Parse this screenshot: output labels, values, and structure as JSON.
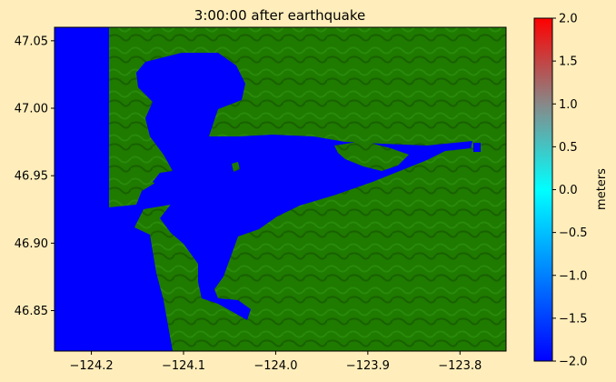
{
  "figure": {
    "title": "3:00:00 after earthquake",
    "colorbar_label": "meters"
  },
  "chart_data": {
    "type": "heatmap",
    "title": "3:00:00 after earthquake",
    "xlabel": "",
    "ylabel": "",
    "xlim": [
      -124.24,
      -123.75
    ],
    "ylim": [
      46.82,
      47.06
    ],
    "xticks": [
      -124.2,
      -124.1,
      -124.0,
      -123.9,
      -123.8
    ],
    "xtick_labels": [
      "−124.2",
      "−124.1",
      "−124.0",
      "−123.9",
      "−123.8"
    ],
    "yticks": [
      46.85,
      46.9,
      46.95,
      47.0,
      47.05
    ],
    "ytick_labels": [
      "46.85",
      "46.90",
      "46.95",
      "47.00",
      "47.05"
    ],
    "colorbar": {
      "label": "meters",
      "range": [
        -2.0,
        2.0
      ],
      "ticks": [
        2.0,
        1.5,
        1.0,
        0.5,
        0.0,
        -0.5,
        -1.0,
        -1.5,
        -2.0
      ],
      "tick_labels": [
        "2.0",
        "1.5",
        "1.0",
        "0.5",
        "0.0",
        "−0.5",
        "−1.0",
        "−1.5",
        "−2.0"
      ],
      "colors": [
        "#0000ff",
        "#0080ff",
        "#00ffff",
        "#888888",
        "#ff0000"
      ]
    },
    "colors": {
      "water": "#0000ff",
      "land": "#1f7a00",
      "background": "#ffeebb"
    },
    "grid": false
  }
}
